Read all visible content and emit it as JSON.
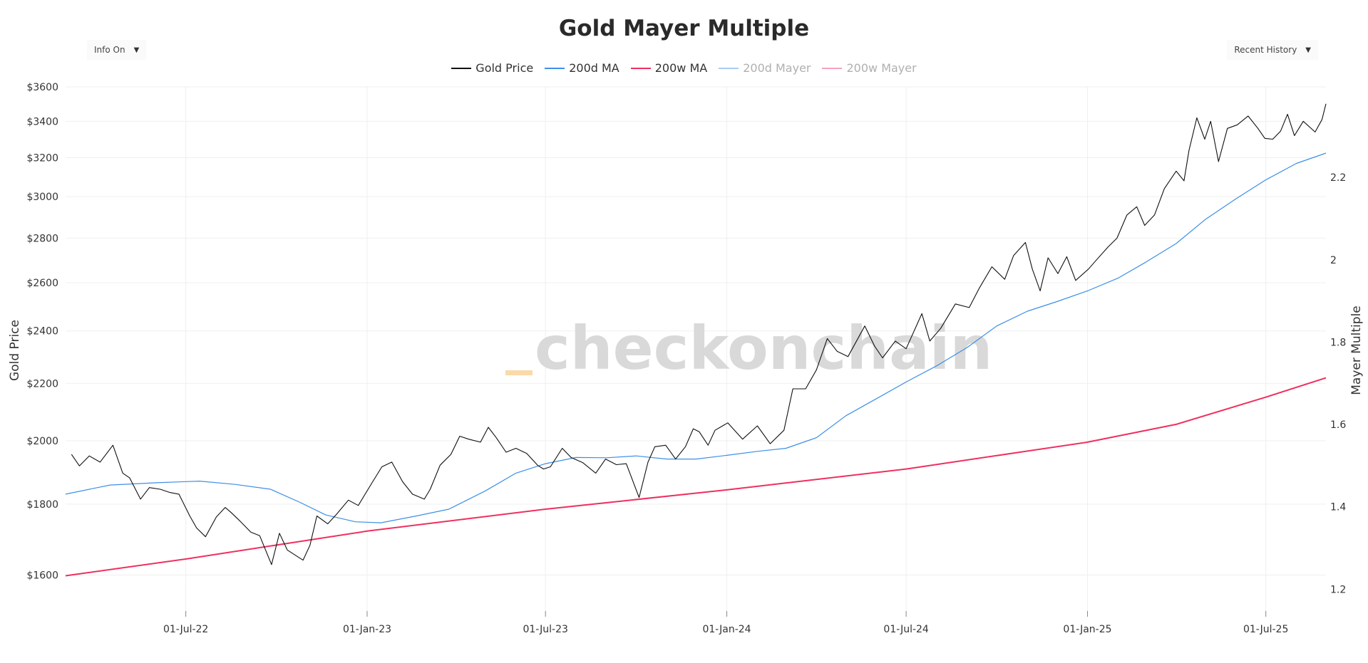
{
  "header": {
    "title": "Gold Mayer Multiple",
    "info_toggle": "Info On",
    "range_select": "Recent History"
  },
  "watermark": "checkonchain",
  "colors": {
    "gold_price": "#111111",
    "ma_200d": "#3d8fe6",
    "ma_200w": "#ef2f5f",
    "mayer_200d": "#a8ccf3",
    "mayer_200w": "#f5a3b9",
    "watermark_accent": "#fbd9a8",
    "grid": "#efefef"
  },
  "chart_data": {
    "type": "line",
    "title": "Gold Mayer Multiple",
    "x_range": [
      "2022-03-01",
      "2025-08-31"
    ],
    "x_ticks": [
      {
        "date": "2022-07-01",
        "label": "01-Jul-22"
      },
      {
        "date": "2023-01-01",
        "label": "01-Jan-23"
      },
      {
        "date": "2023-07-01",
        "label": "01-Jul-23"
      },
      {
        "date": "2024-01-01",
        "label": "01-Jan-24"
      },
      {
        "date": "2024-07-01",
        "label": "01-Jul-24"
      },
      {
        "date": "2025-01-01",
        "label": "01-Jan-25"
      },
      {
        "date": "2025-07-01",
        "label": "01-Jul-25"
      }
    ],
    "y_left": {
      "label": "Gold Price",
      "scale": "log",
      "range": [
        1500,
        3600
      ],
      "ticks": [
        1600,
        1800,
        2000,
        2200,
        2400,
        2600,
        2800,
        3000,
        3200,
        3400,
        3600
      ],
      "tick_labels": [
        "$1600",
        "$1800",
        "$2000",
        "$2200",
        "$2400",
        "$2600",
        "$2800",
        "$3000",
        "$3200",
        "$3400",
        "$3600"
      ]
    },
    "y_right": {
      "label": "Mayer Multiple",
      "range": [
        1.14,
        2.42
      ],
      "ticks": [
        1.2,
        1.4,
        1.6,
        1.8,
        2.0,
        2.2
      ],
      "tick_labels": [
        "1.2",
        "1.4",
        "1.6",
        "1.8",
        "2",
        "2.2"
      ]
    },
    "series": [
      {
        "name": "Gold Price",
        "visible": true,
        "points": [
          [
            "2022-03-07",
            1955
          ],
          [
            "2022-03-15",
            1918
          ],
          [
            "2022-03-25",
            1950
          ],
          [
            "2022-04-05",
            1930
          ],
          [
            "2022-04-18",
            1985
          ],
          [
            "2022-04-28",
            1895
          ],
          [
            "2022-05-05",
            1880
          ],
          [
            "2022-05-16",
            1815
          ],
          [
            "2022-05-25",
            1850
          ],
          [
            "2022-06-05",
            1845
          ],
          [
            "2022-06-15",
            1835
          ],
          [
            "2022-06-24",
            1830
          ],
          [
            "2022-07-05",
            1765
          ],
          [
            "2022-07-12",
            1730
          ],
          [
            "2022-07-21",
            1705
          ],
          [
            "2022-08-01",
            1762
          ],
          [
            "2022-08-10",
            1790
          ],
          [
            "2022-08-16",
            1775
          ],
          [
            "2022-08-25",
            1750
          ],
          [
            "2022-09-05",
            1718
          ],
          [
            "2022-09-14",
            1708
          ],
          [
            "2022-09-26",
            1628
          ],
          [
            "2022-10-04",
            1715
          ],
          [
            "2022-10-12",
            1668
          ],
          [
            "2022-10-21",
            1652
          ],
          [
            "2022-10-28",
            1640
          ],
          [
            "2022-11-04",
            1681
          ],
          [
            "2022-11-11",
            1765
          ],
          [
            "2022-11-22",
            1742
          ],
          [
            "2022-12-01",
            1770
          ],
          [
            "2022-12-13",
            1812
          ],
          [
            "2022-12-23",
            1796
          ],
          [
            "2023-01-06",
            1865
          ],
          [
            "2023-01-16",
            1915
          ],
          [
            "2023-01-26",
            1930
          ],
          [
            "2023-02-06",
            1868
          ],
          [
            "2023-02-16",
            1830
          ],
          [
            "2023-02-28",
            1815
          ],
          [
            "2023-03-06",
            1845
          ],
          [
            "2023-03-16",
            1920
          ],
          [
            "2023-03-27",
            1955
          ],
          [
            "2023-04-05",
            2015
          ],
          [
            "2023-04-14",
            2005
          ],
          [
            "2023-04-26",
            1995
          ],
          [
            "2023-05-04",
            2045
          ],
          [
            "2023-05-12",
            2010
          ],
          [
            "2023-05-22",
            1962
          ],
          [
            "2023-06-01",
            1975
          ],
          [
            "2023-06-12",
            1958
          ],
          [
            "2023-06-23",
            1920
          ],
          [
            "2023-06-29",
            1908
          ],
          [
            "2023-07-06",
            1915
          ],
          [
            "2023-07-18",
            1975
          ],
          [
            "2023-07-27",
            1945
          ],
          [
            "2023-08-08",
            1928
          ],
          [
            "2023-08-21",
            1895
          ],
          [
            "2023-08-31",
            1940
          ],
          [
            "2023-09-11",
            1922
          ],
          [
            "2023-09-21",
            1925
          ],
          [
            "2023-10-04",
            1820
          ],
          [
            "2023-10-13",
            1930
          ],
          [
            "2023-10-20",
            1980
          ],
          [
            "2023-10-31",
            1985
          ],
          [
            "2023-11-10",
            1940
          ],
          [
            "2023-11-20",
            1980
          ],
          [
            "2023-11-28",
            2040
          ],
          [
            "2023-12-04",
            2030
          ],
          [
            "2023-12-13",
            1985
          ],
          [
            "2023-12-20",
            2035
          ],
          [
            "2024-01-02",
            2060
          ],
          [
            "2024-01-17",
            2005
          ],
          [
            "2024-02-01",
            2050
          ],
          [
            "2024-02-14",
            1990
          ],
          [
            "2024-02-28",
            2035
          ],
          [
            "2024-03-08",
            2180
          ],
          [
            "2024-03-21",
            2180
          ],
          [
            "2024-04-01",
            2250
          ],
          [
            "2024-04-12",
            2370
          ],
          [
            "2024-04-22",
            2320
          ],
          [
            "2024-05-03",
            2300
          ],
          [
            "2024-05-20",
            2420
          ],
          [
            "2024-05-30",
            2340
          ],
          [
            "2024-06-07",
            2295
          ],
          [
            "2024-06-20",
            2360
          ],
          [
            "2024-07-01",
            2330
          ],
          [
            "2024-07-17",
            2470
          ],
          [
            "2024-07-25",
            2360
          ],
          [
            "2024-08-05",
            2410
          ],
          [
            "2024-08-20",
            2510
          ],
          [
            "2024-09-03",
            2495
          ],
          [
            "2024-09-13",
            2575
          ],
          [
            "2024-09-26",
            2670
          ],
          [
            "2024-10-09",
            2615
          ],
          [
            "2024-10-18",
            2720
          ],
          [
            "2024-10-30",
            2780
          ],
          [
            "2024-11-06",
            2660
          ],
          [
            "2024-11-14",
            2565
          ],
          [
            "2024-11-22",
            2710
          ],
          [
            "2024-12-02",
            2640
          ],
          [
            "2024-12-11",
            2715
          ],
          [
            "2024-12-20",
            2610
          ],
          [
            "2025-01-02",
            2660
          ],
          [
            "2025-01-10",
            2700
          ],
          [
            "2025-01-22",
            2760
          ],
          [
            "2025-01-31",
            2800
          ],
          [
            "2025-02-10",
            2910
          ],
          [
            "2025-02-20",
            2950
          ],
          [
            "2025-02-28",
            2860
          ],
          [
            "2025-03-10",
            2910
          ],
          [
            "2025-03-20",
            3040
          ],
          [
            "2025-04-01",
            3130
          ],
          [
            "2025-04-09",
            3080
          ],
          [
            "2025-04-14",
            3240
          ],
          [
            "2025-04-22",
            3420
          ],
          [
            "2025-04-30",
            3300
          ],
          [
            "2025-05-06",
            3400
          ],
          [
            "2025-05-14",
            3180
          ],
          [
            "2025-05-23",
            3360
          ],
          [
            "2025-06-02",
            3380
          ],
          [
            "2025-06-13",
            3430
          ],
          [
            "2025-06-23",
            3360
          ],
          [
            "2025-06-30",
            3305
          ],
          [
            "2025-07-08",
            3300
          ],
          [
            "2025-07-16",
            3345
          ],
          [
            "2025-07-23",
            3440
          ],
          [
            "2025-07-30",
            3320
          ],
          [
            "2025-08-08",
            3400
          ],
          [
            "2025-08-20",
            3340
          ],
          [
            "2025-08-27",
            3410
          ],
          [
            "2025-08-31",
            3500
          ]
        ]
      },
      {
        "name": "200d MA",
        "visible": true,
        "points": [
          [
            "2022-03-01",
            1830
          ],
          [
            "2022-04-15",
            1858
          ],
          [
            "2022-06-01",
            1865
          ],
          [
            "2022-07-15",
            1870
          ],
          [
            "2022-08-20",
            1860
          ],
          [
            "2022-09-25",
            1845
          ],
          [
            "2022-10-25",
            1805
          ],
          [
            "2022-11-20",
            1768
          ],
          [
            "2022-12-20",
            1748
          ],
          [
            "2023-01-15",
            1745
          ],
          [
            "2023-02-20",
            1765
          ],
          [
            "2023-03-25",
            1785
          ],
          [
            "2023-05-01",
            1840
          ],
          [
            "2023-06-01",
            1895
          ],
          [
            "2023-07-01",
            1925
          ],
          [
            "2023-08-01",
            1945
          ],
          [
            "2023-09-01",
            1944
          ],
          [
            "2023-10-01",
            1950
          ],
          [
            "2023-11-01",
            1940
          ],
          [
            "2023-12-01",
            1940
          ],
          [
            "2024-01-01",
            1952
          ],
          [
            "2024-02-01",
            1965
          ],
          [
            "2024-03-01",
            1975
          ],
          [
            "2024-04-01",
            2010
          ],
          [
            "2024-05-01",
            2085
          ],
          [
            "2024-06-01",
            2145
          ],
          [
            "2024-07-01",
            2205
          ],
          [
            "2024-08-01",
            2265
          ],
          [
            "2024-09-01",
            2335
          ],
          [
            "2024-10-01",
            2420
          ],
          [
            "2024-11-01",
            2480
          ],
          [
            "2024-12-01",
            2520
          ],
          [
            "2025-01-01",
            2565
          ],
          [
            "2025-02-01",
            2620
          ],
          [
            "2025-03-01",
            2690
          ],
          [
            "2025-04-01",
            2775
          ],
          [
            "2025-05-01",
            2890
          ],
          [
            "2025-06-01",
            2990
          ],
          [
            "2025-07-01",
            3085
          ],
          [
            "2025-08-01",
            3170
          ],
          [
            "2025-08-31",
            3225
          ]
        ]
      },
      {
        "name": "200w MA",
        "visible": true,
        "points": [
          [
            "2022-03-01",
            1598
          ],
          [
            "2022-07-01",
            1643
          ],
          [
            "2023-01-01",
            1721
          ],
          [
            "2023-07-01",
            1785
          ],
          [
            "2024-01-01",
            1843
          ],
          [
            "2024-07-01",
            1908
          ],
          [
            "2025-01-01",
            1995
          ],
          [
            "2025-04-01",
            2055
          ],
          [
            "2025-07-01",
            2150
          ],
          [
            "2025-08-31",
            2220
          ]
        ]
      },
      {
        "name": "200d Mayer",
        "visible": false,
        "points": []
      },
      {
        "name": "200w Mayer",
        "visible": false,
        "points": []
      }
    ]
  }
}
